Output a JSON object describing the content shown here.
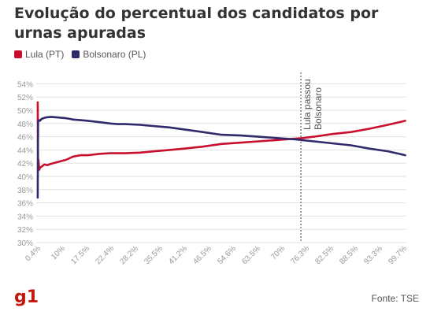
{
  "title": "Evolução do percentual dos candidatos por urnas apuradas",
  "legend": {
    "items": [
      {
        "label": "Lula (PT)",
        "color": "#c8102e"
      },
      {
        "label": "Bolsonaro (PL)",
        "color": "#2e2a6b"
      }
    ]
  },
  "source": "Fonte: TSE",
  "logo": "g1",
  "chart_data": {
    "type": "line",
    "title": "Evolução do percentual dos candidatos por urnas apuradas",
    "xlabel": "",
    "ylabel": "",
    "y_ticks": [
      "54%",
      "52%",
      "50%",
      "48%",
      "46%",
      "44%",
      "42%",
      "40%",
      "38%",
      "36%",
      "34%",
      "32%",
      "30%"
    ],
    "ylim": [
      30,
      55
    ],
    "x_ticks": [
      "0.4%",
      "10%",
      "17.5%",
      "22.4%",
      "28.2%",
      "35.5%",
      "41.2%",
      "46.5%",
      "54.6%",
      "63.5%",
      "70%",
      "76.3%",
      "82.5%",
      "88.5%",
      "93.3%",
      "99.7%"
    ],
    "xlim": [
      0,
      100
    ],
    "grid": true,
    "legend_position": "top-left",
    "annotation": {
      "lines": [
        "Lula passou",
        "Bolsonaro"
      ],
      "x": 71.5
    },
    "series": [
      {
        "name": "Lula (PT)",
        "color": "#c8102e",
        "x": [
          0.4,
          0.45,
          0.5,
          0.6,
          0.8,
          1.0,
          1.5,
          2.2,
          3,
          4,
          6,
          8,
          10,
          12,
          14,
          17,
          20,
          24,
          28,
          32,
          36,
          40,
          45,
          50,
          55,
          60,
          65,
          70,
          72,
          75,
          80,
          85,
          90,
          95,
          99.7
        ],
        "y": [
          51.2,
          45.0,
          41.0,
          42.5,
          41.0,
          41.3,
          41.5,
          41.8,
          41.7,
          41.9,
          42.2,
          42.5,
          43.0,
          43.2,
          43.2,
          43.4,
          43.5,
          43.5,
          43.6,
          43.8,
          44.0,
          44.2,
          44.5,
          44.9,
          45.1,
          45.3,
          45.5,
          45.7,
          45.8,
          46.0,
          46.4,
          46.7,
          47.2,
          47.8,
          48.4
        ]
      },
      {
        "name": "Bolsonaro (PL)",
        "color": "#2e2a6b",
        "x": [
          0.4,
          0.45,
          0.5,
          0.6,
          0.8,
          1.0,
          1.5,
          2.5,
          4,
          6,
          8,
          9,
          10,
          12,
          14,
          17,
          20,
          22,
          24,
          28,
          32,
          36,
          40,
          45,
          50,
          55,
          60,
          65,
          70,
          75,
          80,
          85,
          90,
          95,
          99.7
        ],
        "y": [
          36.8,
          44.0,
          48.3,
          48.4,
          48.5,
          48.4,
          48.7,
          48.9,
          49.0,
          48.9,
          48.8,
          48.7,
          48.6,
          48.5,
          48.4,
          48.2,
          48.0,
          47.9,
          47.9,
          47.8,
          47.6,
          47.4,
          47.1,
          46.7,
          46.3,
          46.2,
          46.0,
          45.8,
          45.6,
          45.3,
          45.0,
          44.7,
          44.2,
          43.8,
          43.2
        ]
      }
    ]
  }
}
